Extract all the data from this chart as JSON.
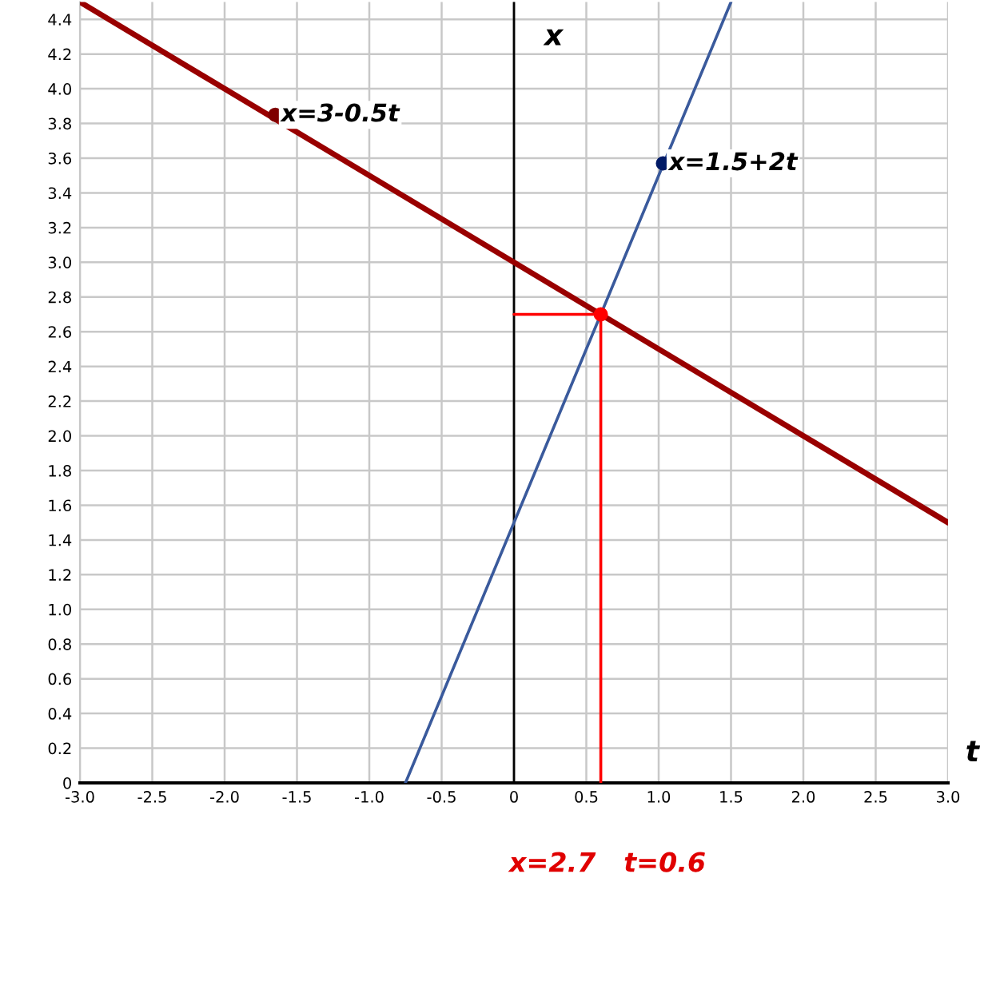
{
  "chart_data": {
    "type": "line",
    "xlabel": "t",
    "ylabel": "x",
    "xlim": [
      -3.0,
      3.0
    ],
    "ylim": [
      0,
      4.5
    ],
    "xticks": [
      {
        "value": -3,
        "label": "-3.0"
      },
      -2.5,
      {
        "value": -2,
        "label": "-2.0"
      },
      -1.5,
      {
        "value": -1,
        "label": "-1.0"
      },
      -0.5,
      0,
      0.5,
      {
        "value": 1,
        "label": "1.0"
      },
      1.5,
      {
        "value": 2,
        "label": "2.0"
      },
      2.5,
      {
        "value": 3,
        "label": "3.0"
      }
    ],
    "yticks": [
      0,
      0.2,
      0.4,
      0.6,
      0.8,
      {
        "value": 1,
        "label": "1.0"
      },
      1.2,
      1.4,
      1.6,
      1.8,
      {
        "value": 2,
        "label": "2.0"
      },
      2.2,
      2.4,
      2.6,
      2.8,
      {
        "value": 3,
        "label": "3.0"
      },
      3.2,
      3.4,
      3.6,
      3.8,
      {
        "value": 4,
        "label": "4.0"
      },
      4.2,
      4.4
    ],
    "grid": true,
    "legend": false,
    "marker": "none",
    "line_style": "solid",
    "ref_lines": [
      {
        "axis": "x",
        "value": 0,
        "color": "#000000"
      }
    ],
    "series": [
      {
        "color": "#990000",
        "x": [
          -3.0,
          3.0
        ],
        "values": [
          4.5,
          1.5
        ]
      },
      {
        "color": "#3a5a9c",
        "x": [
          -0.75,
          1.5
        ],
        "values": [
          0,
          4.5
        ]
      },
      {
        "color": "#ff0000",
        "x": [
          0,
          0.6,
          0.6
        ],
        "values": [
          2.7,
          2.7,
          0
        ]
      },
      {
        "type": "scatter",
        "marker": "circle",
        "color": "#ff0000",
        "x": [
          0.6
        ],
        "values": [
          2.7
        ]
      },
      {
        "type": "scatter",
        "marker": "circle",
        "name": "x=3-0.5t",
        "color": "#7f0000",
        "x": [
          -1.65
        ],
        "values": [
          3.85
        ]
      },
      {
        "type": "scatter",
        "marker": "circle",
        "name": "x=1.5+2t",
        "color": "#001a66",
        "x": [
          1.03
        ],
        "values": [
          3.57
        ]
      }
    ],
    "annotations": [
      "x=2.7   t=0.6"
    ]
  }
}
